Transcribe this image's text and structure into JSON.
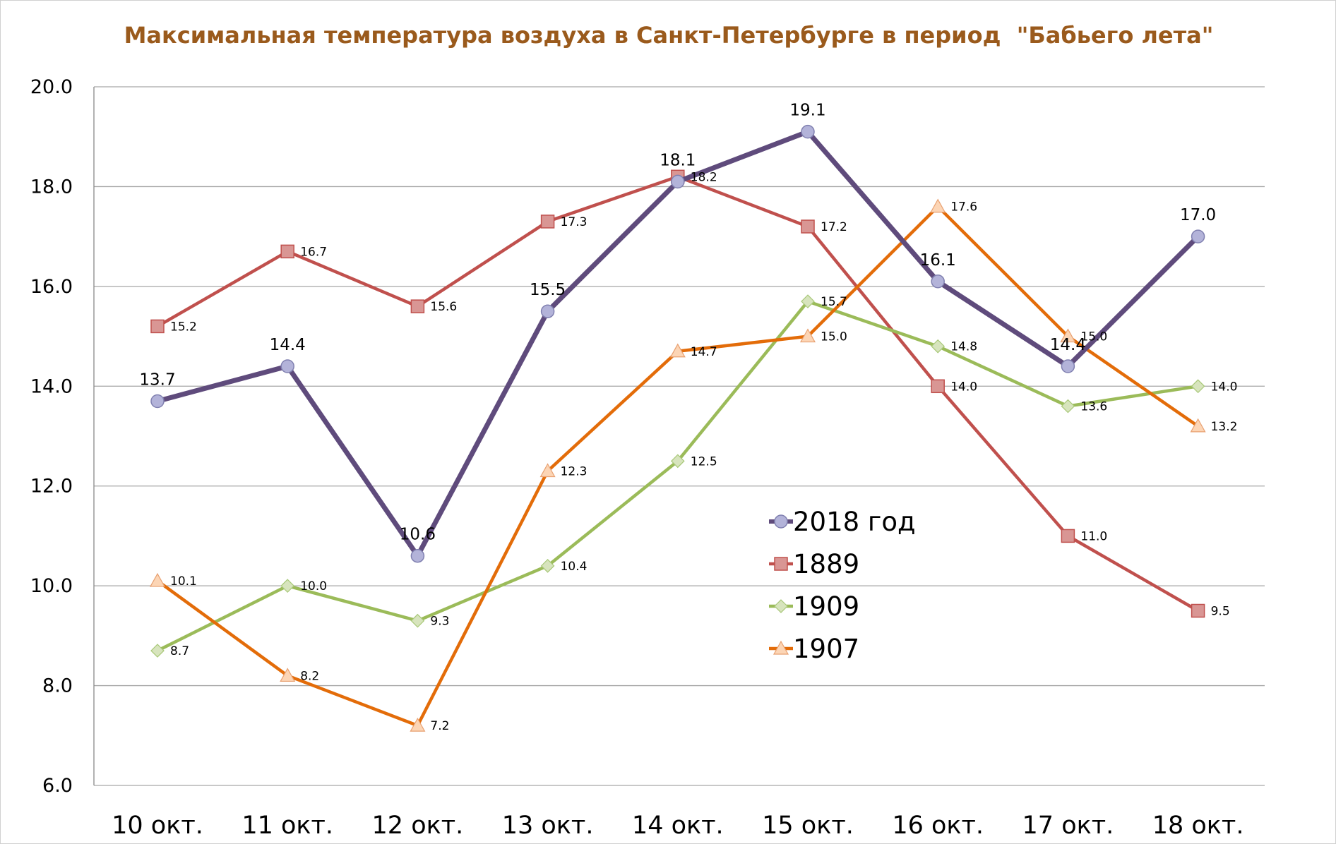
{
  "chart_data": {
    "type": "line",
    "title": "Максимальная температура воздуха в Санкт-Петербурге в период  \"Бабьего лета\"",
    "xlabel": "",
    "ylabel": "",
    "categories": [
      "10 окт.",
      "11 окт.",
      "12 окт.",
      "13 окт.",
      "14 окт.",
      "15 окт.",
      "16 окт.",
      "17 окт.",
      "18 окт."
    ],
    "ylim": [
      6.0,
      20.0
    ],
    "yticks": [
      "6.0",
      "8.0",
      "10.0",
      "12.0",
      "14.0",
      "16.0",
      "18.0",
      "20.0"
    ],
    "grid": "horizontal",
    "legend_position": "center-right",
    "series": [
      {
        "name": "1889",
        "marker": "square",
        "color": "#c0504d",
        "marker_fill": "#d99694",
        "values": [
          15.2,
          16.7,
          15.6,
          17.3,
          18.2,
          17.2,
          14.0,
          11.0,
          9.5
        ]
      },
      {
        "name": "1909",
        "marker": "diamond",
        "color": "#9bbb59",
        "marker_fill": "#d7e4bd",
        "values": [
          8.7,
          10.0,
          9.3,
          10.4,
          12.5,
          15.7,
          14.8,
          13.6,
          14.0
        ]
      },
      {
        "name": "1907",
        "marker": "triangle",
        "color": "#e36c09",
        "marker_fill": "#fcd5b5",
        "values": [
          10.1,
          8.2,
          7.2,
          12.3,
          14.7,
          15.0,
          17.6,
          15.0,
          13.2
        ]
      },
      {
        "name": "2018 год",
        "marker": "circle",
        "color": "#5f4b7c",
        "marker_fill": "#b3b3d9",
        "values": [
          13.7,
          14.4,
          10.6,
          15.5,
          18.1,
          19.1,
          16.1,
          14.4,
          17.0
        ]
      }
    ],
    "legend_order": [
      "2018 год",
      "1889",
      "1909",
      "1907"
    ]
  }
}
